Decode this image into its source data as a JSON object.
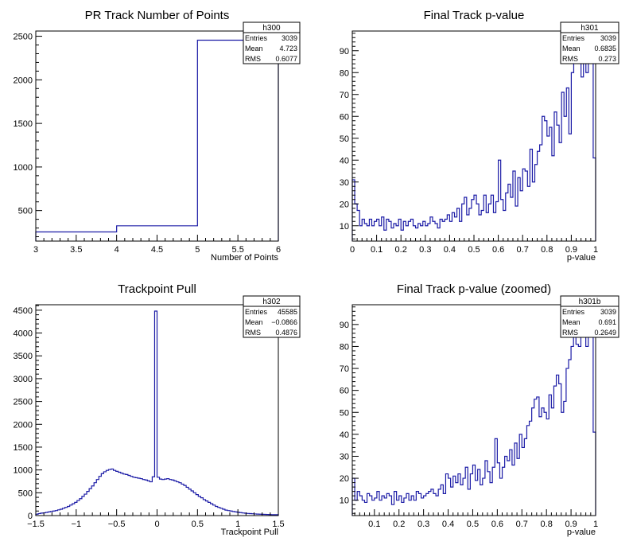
{
  "chart_data": [
    {
      "type": "histogram",
      "title": "PR Track Number of Points",
      "xlabel": "Number of Points",
      "ylabel": "",
      "xlim": [
        3,
        6
      ],
      "ylim": [
        150,
        2560
      ],
      "xticks": [
        3,
        3.5,
        4,
        4.5,
        5,
        5.5,
        6
      ],
      "xtick_labels": [
        "3",
        "3.5",
        "4",
        "4.5",
        "5",
        "5.5",
        "6"
      ],
      "yticks": [
        500,
        1000,
        1500,
        2000,
        2500
      ],
      "ytick_labels": [
        "500",
        "1000",
        "1500",
        "2000",
        "2500"
      ],
      "bins": {
        "edges": [
          3,
          4,
          5,
          6
        ],
        "values": [
          255,
          325,
          2455
        ]
      },
      "stats": {
        "name": "h300",
        "rows": [
          [
            "Entries",
            "3039"
          ],
          [
            "Mean",
            "4.723"
          ],
          [
            "RMS",
            "0.6077"
          ]
        ]
      }
    },
    {
      "type": "histogram",
      "title": "Final Track p-value",
      "xlabel": "p-value",
      "ylabel": "",
      "xlim": [
        0,
        1
      ],
      "ylim": [
        3,
        99
      ],
      "xticks": [
        0,
        0.1,
        0.2,
        0.3,
        0.4,
        0.5,
        0.6,
        0.7,
        0.8,
        0.9,
        1
      ],
      "xtick_labels": [
        "0",
        "0.1",
        "0.2",
        "0.3",
        "0.4",
        "0.5",
        "0.6",
        "0.7",
        "0.8",
        "0.9",
        "1"
      ],
      "yticks": [
        10,
        20,
        30,
        40,
        50,
        60,
        70,
        80,
        90
      ],
      "ytick_labels": [
        "10",
        "20",
        "30",
        "40",
        "50",
        "60",
        "70",
        "80",
        "90"
      ],
      "bins": {
        "start": 0,
        "width": 0.01,
        "values": [
          31,
          20,
          17,
          10,
          13,
          11,
          10,
          13,
          10,
          12,
          13,
          10,
          14,
          8,
          13,
          12,
          9,
          11,
          10,
          13,
          8,
          12,
          10,
          12,
          13,
          10,
          9,
          11,
          10,
          12,
          10,
          11,
          14,
          12,
          11,
          9,
          13,
          12,
          13,
          15,
          12,
          16,
          14,
          18,
          12,
          20,
          23,
          15,
          18,
          22,
          24,
          20,
          15,
          17,
          24,
          16,
          20,
          24,
          16,
          21,
          40,
          22,
          17,
          25,
          29,
          23,
          35,
          19,
          32,
          26,
          36,
          35,
          28,
          45,
          30,
          38,
          44,
          47,
          60,
          58,
          51,
          55,
          42,
          62,
          56,
          48,
          71,
          60,
          73,
          52,
          80,
          85,
          97,
          88,
          78,
          86,
          80,
          90,
          98,
          41
        ]
      },
      "stats": {
        "name": "h301",
        "rows": [
          [
            "Entries",
            "3039"
          ],
          [
            "Mean",
            "0.6835"
          ],
          [
            "RMS",
            "0.273"
          ]
        ]
      }
    },
    {
      "type": "histogram",
      "title": "Trackpoint Pull",
      "xlabel": "Trackpoint Pull",
      "ylabel": "",
      "xlim": [
        -1.5,
        1.5
      ],
      "ylim": [
        0,
        4620
      ],
      "xticks": [
        -1.5,
        -1,
        -0.5,
        0,
        0.5,
        1,
        1.5
      ],
      "xtick_labels": [
        "−1.5",
        "−1",
        "−0.5",
        "0",
        "0.5",
        "1",
        "1.5"
      ],
      "yticks": [
        0,
        500,
        1000,
        1500,
        2000,
        2500,
        3000,
        3500,
        4000,
        4500
      ],
      "ytick_labels": [
        "0",
        "500",
        "1000",
        "1500",
        "2000",
        "2500",
        "3000",
        "3500",
        "4000",
        "4500"
      ],
      "bins": {
        "start": -1.5,
        "width": 0.03,
        "values": [
          30,
          45,
          55,
          60,
          70,
          80,
          90,
          100,
          110,
          125,
          140,
          160,
          180,
          200,
          230,
          260,
          290,
          330,
          370,
          420,
          470,
          530,
          590,
          650,
          720,
          790,
          860,
          920,
          960,
          990,
          1010,
          1020,
          990,
          970,
          950,
          930,
          910,
          900,
          880,
          860,
          840,
          830,
          820,
          810,
          790,
          780,
          760,
          740,
          850,
          4480,
          840,
          800,
          790,
          800,
          810,
          790,
          780,
          760,
          740,
          720,
          690,
          660,
          620,
          580,
          540,
          500,
          460,
          420,
          390,
          350,
          320,
          290,
          260,
          230,
          200,
          180,
          160,
          140,
          120,
          110,
          100,
          90,
          80,
          72,
          65,
          58,
          52,
          47,
          43,
          40,
          36,
          33,
          30,
          28,
          26,
          24,
          22,
          20,
          20,
          20
        ]
      },
      "stats": {
        "name": "h302",
        "rows": [
          [
            "Entries",
            "45585"
          ],
          [
            "Mean",
            "−0.0866"
          ],
          [
            "RMS",
            "0.4876"
          ]
        ]
      }
    },
    {
      "type": "histogram",
      "title": "Final Track p-value (zoomed)",
      "xlabel": "p-value",
      "ylabel": "",
      "xlim": [
        0.01,
        1
      ],
      "ylim": [
        3,
        99
      ],
      "xticks": [
        0.1,
        0.2,
        0.3,
        0.4,
        0.5,
        0.6,
        0.7,
        0.8,
        0.9,
        1
      ],
      "xtick_labels": [
        "0.1",
        "0.2",
        "0.3",
        "0.4",
        "0.5",
        "0.6",
        "0.7",
        "0.8",
        "0.9",
        "1"
      ],
      "yticks": [
        10,
        20,
        30,
        40,
        50,
        60,
        70,
        80,
        90
      ],
      "ytick_labels": [
        "10",
        "20",
        "30",
        "40",
        "50",
        "60",
        "70",
        "80",
        "90"
      ],
      "bins": {
        "start": 0.01,
        "width": 0.01,
        "values": [
          20,
          10,
          14,
          12,
          10,
          9,
          13,
          12,
          10,
          11,
          14,
          10,
          12,
          11,
          13,
          12,
          8,
          14,
          10,
          12,
          9,
          11,
          13,
          10,
          12,
          10,
          14,
          13,
          11,
          12,
          13,
          14,
          15,
          13,
          12,
          15,
          17,
          13,
          22,
          20,
          16,
          21,
          18,
          22,
          17,
          20,
          25,
          15,
          22,
          26,
          19,
          24,
          17,
          20,
          28,
          23,
          18,
          25,
          38,
          27,
          20,
          25,
          30,
          28,
          33,
          26,
          36,
          29,
          40,
          34,
          38,
          44,
          46,
          52,
          56,
          57,
          48,
          52,
          50,
          47,
          58,
          52,
          62,
          67,
          63,
          50,
          55,
          70,
          74,
          80,
          85,
          81,
          80,
          93,
          88,
          80,
          86,
          90,
          41
        ]
      },
      "stats": {
        "name": "h301b",
        "rows": [
          [
            "Entries",
            "3039"
          ],
          [
            "Mean",
            "0.691"
          ],
          [
            "RMS",
            "0.2649"
          ]
        ]
      }
    }
  ]
}
